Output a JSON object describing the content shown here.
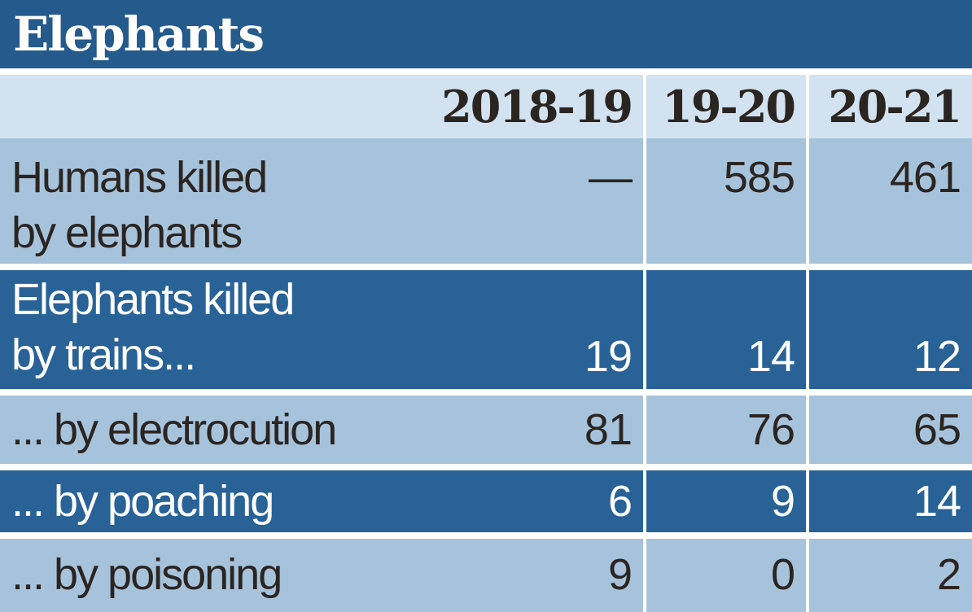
{
  "title": "Elephants",
  "chart_data": {
    "type": "table",
    "title": "Elephants",
    "columns": [
      "2018-19",
      "19-20",
      "20-21"
    ],
    "rows": [
      {
        "label": "Humans killed\nby elephants",
        "values": [
          "—",
          "585",
          "461"
        ]
      },
      {
        "label": "Elephants killed\nby trains...",
        "values": [
          "19",
          "14",
          "12"
        ]
      },
      {
        "label": "... by electrocution",
        "values": [
          "81",
          "76",
          "65"
        ]
      },
      {
        "label": "... by poaching",
        "values": [
          "6",
          "9",
          "14"
        ]
      },
      {
        "label": "... by poisoning",
        "values": [
          "9",
          "0",
          "2"
        ]
      }
    ]
  },
  "colors": {
    "title_background": "#245a8c",
    "header_background": "#d3e2f0",
    "light_row_background": "#a7c3dc",
    "dark_row_background": "#286297",
    "dark_text": "#2b2522",
    "light_text": "#ffffff"
  }
}
